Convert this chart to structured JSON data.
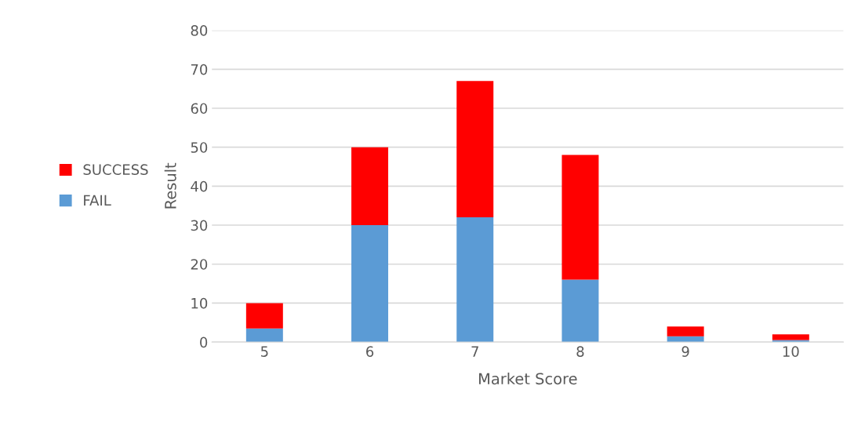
{
  "chart_data": {
    "type": "bar",
    "stacked": true,
    "xlabel": "Market Score",
    "ylabel": "Result",
    "categories": [
      "5",
      "6",
      "7",
      "8",
      "9",
      "10"
    ],
    "series": [
      {
        "name": "FAIL",
        "color": "#5b9bd5",
        "values": [
          3.5,
          30,
          32,
          16,
          1.5,
          0.5
        ]
      },
      {
        "name": "SUCCESS",
        "color": "#ff0000",
        "values": [
          6.5,
          20,
          35,
          32,
          2.5,
          1.5
        ]
      }
    ],
    "ylim": [
      0,
      80
    ],
    "yticks": [
      0,
      10,
      20,
      30,
      40,
      50,
      60,
      70,
      80
    ],
    "grid": "y",
    "legend": "left"
  }
}
